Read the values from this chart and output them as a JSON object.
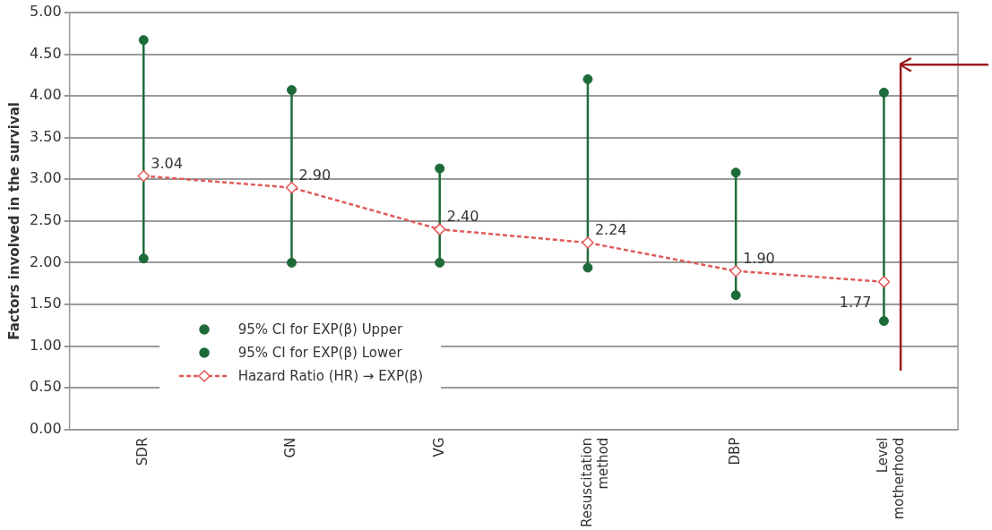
{
  "chart_data": {
    "type": "line",
    "ylabel": "Factors involved in the survival",
    "categories": [
      "SDR",
      "GN",
      "VG",
      "Resuscitation method",
      "DBP",
      "Level motherhood"
    ],
    "series": [
      {
        "name": "95% CI for EXP(β) Upper",
        "type": "scatter",
        "color": "#1e6b3a",
        "marker": "circle",
        "values": [
          4.67,
          4.07,
          3.13,
          4.2,
          3.08,
          4.04
        ]
      },
      {
        "name": "95% CI for EXP(β) Lower",
        "type": "scatter",
        "color": "#1e6b3a",
        "marker": "circle",
        "values": [
          2.05,
          2.0,
          2.0,
          1.94,
          1.61,
          1.3
        ]
      },
      {
        "name": "Hazard Ratio (HR) → EXP(β)",
        "color": "#e05a5a",
        "marker": "diamond",
        "line_style": "dashed",
        "values": [
          3.04,
          2.9,
          2.4,
          2.24,
          1.9,
          1.77
        ],
        "value_labels": [
          "3.04",
          "2.90",
          "2.40",
          "2.24",
          "1.90",
          "1.77"
        ]
      }
    ],
    "ylim": [
      0,
      5
    ],
    "yticks": [
      {
        "value": 0,
        "label": "0.00"
      },
      {
        "value": 0.5,
        "label": "0.50"
      },
      {
        "value": 1,
        "label": "1.00"
      },
      {
        "value": 1.5,
        "label": "1.50"
      },
      {
        "value": 2,
        "label": "2.00"
      },
      {
        "value": 2.5,
        "label": "2.50"
      },
      {
        "value": 3,
        "label": "3.00"
      },
      {
        "value": 3.5,
        "label": "3.50"
      },
      {
        "value": 4,
        "label": "4.00"
      },
      {
        "value": 4.5,
        "label": "4.50"
      },
      {
        "value": 5,
        "label": "5.00"
      }
    ],
    "grid": "y",
    "legend": "bottom left"
  }
}
